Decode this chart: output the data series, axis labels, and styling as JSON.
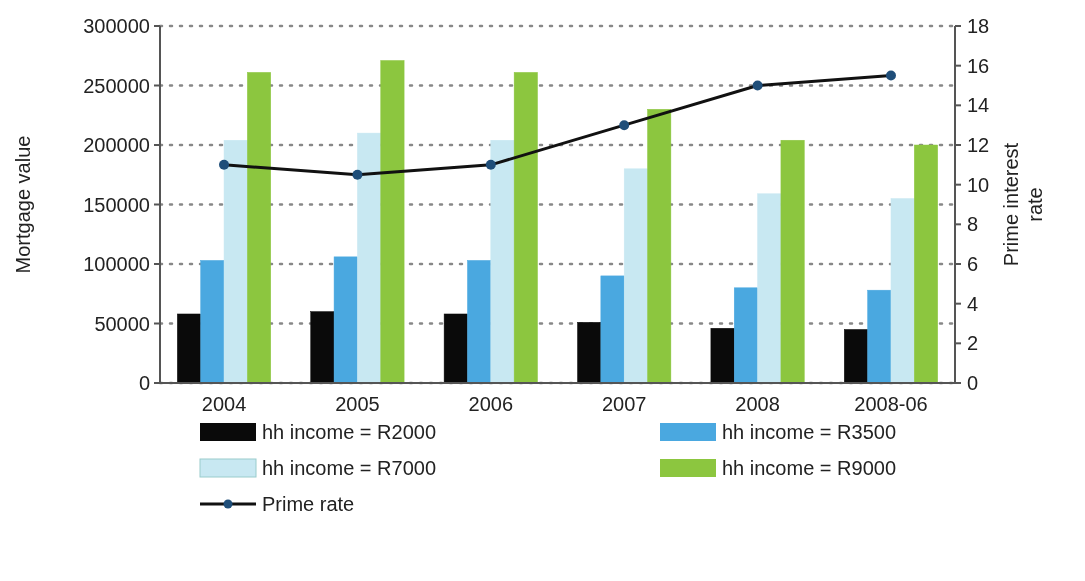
{
  "chart_data": {
    "type": "bar",
    "ylabel": "Mortgage value",
    "y2label": "Prime interest rate",
    "categories": [
      "2004",
      "2005",
      "2006",
      "2007",
      "2008",
      "2008-06"
    ],
    "series": [
      {
        "name": "hh income = R2000",
        "color": "#0a0a0a",
        "values": [
          58000,
          60000,
          58000,
          51000,
          46000,
          45000
        ]
      },
      {
        "name": "hh income = R3500",
        "color": "#4aa8e0",
        "values": [
          103000,
          106000,
          103000,
          90000,
          80000,
          78000
        ]
      },
      {
        "name": "hh income = R7000",
        "color": "#c8e8f2",
        "values": [
          204000,
          210000,
          204000,
          180000,
          159000,
          155000
        ]
      },
      {
        "name": "hh income = R9000",
        "color": "#8cc63f",
        "values": [
          261000,
          271000,
          261000,
          230000,
          204000,
          200000
        ]
      },
      {
        "name": "Prime rate",
        "type": "line",
        "axis": "y2",
        "color": "#111111",
        "values": [
          11,
          10.5,
          11,
          13,
          15,
          15.5
        ]
      }
    ],
    "ylim": [
      0,
      300000
    ],
    "yticks": [
      0,
      50000,
      100000,
      150000,
      200000,
      250000,
      300000
    ],
    "y2lim": [
      0,
      18
    ],
    "y2ticks": [
      0,
      2,
      4,
      6,
      8,
      10,
      12,
      14,
      16,
      18
    ],
    "grid": "y",
    "legend": "bottom",
    "marker": "circle"
  }
}
